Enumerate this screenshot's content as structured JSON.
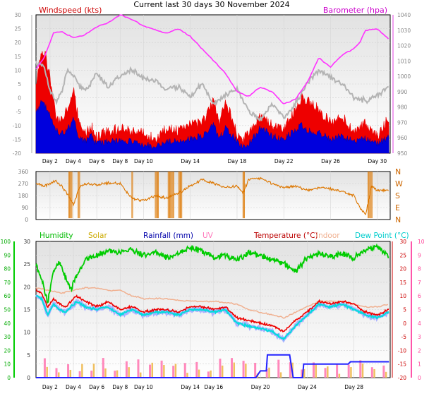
{
  "title": "Current last 30 days 30 November 2024",
  "chart_data": [
    {
      "type": "line",
      "panel": "top",
      "left_label": "Windspeed (kts)",
      "right_label": "Barometer (hpa)",
      "left_ylim": [
        -20,
        30
      ],
      "left_ticks": [
        "30",
        "25",
        "20",
        "15",
        "10",
        "5",
        "0",
        "-5",
        "-10",
        "-15",
        "-20"
      ],
      "right_ylim": [
        950,
        1040
      ],
      "right_ticks": [
        "1040",
        "1030",
        "1020",
        "1010",
        "1000",
        "990",
        "980",
        "970",
        "960",
        "950"
      ],
      "x_ticks": [
        "Day 2",
        "Day 4",
        "Day 6",
        "Day 8",
        "Day 10",
        "Day 14",
        "Day 18",
        "Day 22",
        "Day 26",
        "Day 30"
      ],
      "x_tick_days": [
        2,
        4,
        6,
        8,
        10,
        14,
        18,
        22,
        26,
        30
      ],
      "x_range_days": [
        0.8,
        31.1
      ],
      "series": [
        {
          "name": "Barometer (hpa)",
          "color": "#ff33ff",
          "axis": "right",
          "x": [
            0.8,
            1.5,
            2.3,
            3.0,
            4.0,
            5.0,
            6.0,
            7.0,
            8.0,
            9.0,
            10.0,
            11.0,
            12.0,
            13.0,
            14.0,
            15.0,
            16.0,
            17.0,
            18.0,
            19.0,
            20.0,
            21.0,
            22.0,
            23.0,
            24.0,
            25.0,
            26.0,
            27.0,
            28.0,
            28.5,
            29.0,
            30.0,
            31.0
          ],
          "values": [
            1005,
            1012,
            1028,
            1029,
            1025,
            1027,
            1032,
            1035,
            1040,
            1037,
            1033,
            1030,
            1028,
            1031,
            1026,
            1018,
            1010,
            1002,
            990,
            987,
            993,
            990,
            982,
            985,
            996,
            1012,
            1006,
            1014,
            1018,
            1022,
            1030,
            1031,
            1024
          ]
        },
        {
          "name": "Gust",
          "color": "#ee0000",
          "axis": "left",
          "x": [
            0.8,
            1.2,
            1.6,
            2.0,
            2.5,
            3.0,
            3.5,
            4.0,
            4.5,
            5.0,
            5.5,
            6.0,
            7.0,
            8.0,
            9.0,
            10.0,
            11.0,
            12.0,
            13.0,
            14.0,
            15.0,
            16.0,
            16.5,
            17.0,
            18.0,
            18.5,
            19.0,
            20.0,
            21.0,
            22.0,
            23.0,
            23.5,
            24.0,
            25.0,
            26.0,
            27.0,
            28.0,
            29.0,
            30.0,
            31.0
          ],
          "values": [
            3,
            13,
            14,
            5,
            -9,
            -10,
            -6,
            2,
            -12,
            -15,
            -12,
            -16,
            -14,
            -13,
            -14,
            -15,
            -17,
            -13,
            -14,
            -12,
            -11,
            -3,
            -12,
            -3,
            -15,
            -17,
            -15,
            -9,
            -12,
            -13,
            -6,
            -2,
            -3,
            -6,
            -11,
            -9,
            -14,
            -11,
            -16,
            -9
          ]
        },
        {
          "name": "Windspeed",
          "color": "#0000dd",
          "axis": "left",
          "x": [
            0.8,
            1.2,
            1.6,
            2.0,
            2.5,
            3.0,
            3.5,
            4.0,
            4.5,
            5.0,
            5.5,
            6.0,
            7.0,
            8.0,
            9.0,
            10.0,
            11.0,
            12.0,
            13.0,
            14.0,
            15.0,
            16.0,
            16.5,
            17.0,
            18.0,
            18.5,
            19.0,
            20.0,
            21.0,
            22.0,
            23.0,
            23.5,
            24.0,
            25.0,
            26.0,
            27.0,
            28.0,
            29.0,
            30.0,
            31.0
          ],
          "values": [
            -7,
            -3,
            -4,
            -8,
            -13,
            -14,
            -13,
            -9,
            -16,
            -17,
            -15,
            -18,
            -17,
            -17,
            -17,
            -18,
            -19,
            -17,
            -17,
            -16,
            -15,
            -11,
            -16,
            -12,
            -17,
            -19,
            -18,
            -12,
            -15,
            -16,
            -13,
            -11,
            -13,
            -14,
            -16,
            -15,
            -17,
            -16,
            -18,
            -15
          ]
        },
        {
          "name": "Wind average",
          "color": "#b4b4b4",
          "axis": "left",
          "x": [
            0.8,
            1.5,
            2.0,
            2.5,
            3.0,
            3.5,
            4.0,
            4.5,
            5.0,
            5.5,
            6.0,
            7.0,
            8.0,
            9.0,
            10.0,
            11.0,
            12.0,
            13.0,
            14.0,
            15.0,
            16.0,
            17.0,
            18.0,
            19.0,
            20.0,
            21.0,
            22.0,
            22.5,
            23.0,
            24.0,
            25.0,
            26.0,
            27.0,
            28.0,
            29.0,
            30.0,
            31.0
          ],
          "values": [
            13,
            11,
            2,
            -1,
            2,
            10,
            8,
            4,
            3,
            5,
            9,
            4,
            8,
            10,
            7,
            6,
            3,
            4,
            0,
            5,
            -2,
            1,
            3,
            -5,
            -8,
            -2,
            -7,
            -5,
            -2,
            5,
            10,
            7,
            5,
            0,
            -1,
            1,
            4
          ]
        }
      ]
    },
    {
      "type": "line",
      "panel": "direction",
      "left_ylim": [
        0,
        360
      ],
      "left_ticks": [
        "360",
        "270",
        "180",
        "90",
        "0"
      ],
      "right_ticks": [
        "N",
        "W",
        "S",
        "E",
        "N"
      ],
      "series": [
        {
          "name": "Wind direction",
          "color": "#dd7700",
          "x": [
            0.8,
            1.5,
            2.5,
            3.0,
            3.5,
            4.0,
            4.5,
            5.0,
            6.0,
            7.0,
            8.0,
            9.0,
            10.0,
            11.0,
            12.0,
            13.0,
            14.0,
            15.0,
            16.0,
            17.0,
            18.0,
            18.5,
            19.0,
            20.0,
            21.0,
            22.0,
            23.0,
            24.0,
            25.0,
            26.0,
            27.0,
            28.0,
            28.5,
            29.0,
            29.5,
            30.0,
            31.0
          ],
          "values": [
            270,
            250,
            290,
            250,
            190,
            110,
            240,
            270,
            260,
            275,
            270,
            160,
            140,
            180,
            160,
            200,
            250,
            300,
            270,
            240,
            250,
            200,
            300,
            310,
            270,
            240,
            250,
            220,
            240,
            230,
            210,
            180,
            90,
            40,
            250,
            220,
            220
          ]
        }
      ]
    },
    {
      "type": "line",
      "panel": "bottom",
      "legend": [
        "Humidity",
        "Solar",
        "Rainfall (mm)",
        "UV",
        "Temperature (°C)",
        "Indoor",
        "Dew Point (°C)"
      ],
      "humidity_ylim": [
        0,
        100
      ],
      "humidity_ticks": [
        "100",
        "90",
        "80",
        "70",
        "60",
        "50",
        "40",
        "30",
        "20",
        "10",
        "0"
      ],
      "left_ylim": [
        0,
        30
      ],
      "left_ticks": [
        "30",
        "25",
        "20",
        "15",
        "10",
        "5",
        "0"
      ],
      "right_ylim": [
        -20,
        30
      ],
      "right_ticks": [
        "30",
        "25",
        "20",
        "15",
        "10",
        "5",
        "0",
        "-5",
        "-10",
        "-15",
        "-20"
      ],
      "uv_ticks": [
        "10",
        "9",
        "8",
        "7",
        "6",
        "5",
        "4",
        "3",
        "2",
        "1",
        "0"
      ],
      "x_ticks": [
        "Day 2",
        "Day 4",
        "Day 6",
        "Day 8",
        "Day 10",
        "Day 14",
        "Day 16",
        "Day 20",
        "Day 24",
        "Day 28"
      ],
      "x_tick_days": [
        2,
        4,
        6,
        8,
        10,
        14,
        16,
        20,
        24,
        28
      ],
      "series": [
        {
          "name": "Humidity",
          "color": "#00cc00",
          "axis": "humidity",
          "x": [
            0.8,
            1.3,
            1.8,
            2.3,
            2.8,
            3.3,
            3.8,
            4.3,
            5.0,
            6.0,
            7.0,
            8.0,
            9.0,
            10.0,
            11.0,
            12.0,
            13.0,
            14.0,
            15.0,
            16.0,
            17.0,
            18.0,
            19.0,
            20.0,
            21.0,
            22.0,
            23.0,
            24.0,
            25.0,
            26.0,
            27.0,
            28.0,
            29.0,
            30.0,
            31.0
          ],
          "values": [
            82,
            72,
            55,
            78,
            85,
            74,
            65,
            75,
            86,
            90,
            93,
            92,
            94,
            90,
            92,
            88,
            91,
            95,
            93,
            88,
            90,
            86,
            92,
            90,
            87,
            84,
            78,
            88,
            91,
            89,
            91,
            88,
            94,
            96,
            88
          ]
        },
        {
          "name": "Temperature (°C)",
          "color": "#ee0000",
          "axis": "right",
          "x": [
            0.8,
            1.3,
            1.8,
            2.3,
            2.8,
            3.3,
            3.8,
            4.3,
            5.0,
            6.0,
            7.0,
            8.0,
            9.0,
            10.0,
            11.0,
            12.0,
            13.0,
            14.0,
            15.0,
            16.0,
            17.0,
            18.0,
            19.0,
            20.0,
            21.0,
            22.0,
            23.0,
            24.0,
            25.0,
            26.0,
            27.0,
            28.0,
            29.0,
            30.0,
            31.0
          ],
          "values": [
            12,
            11,
            6,
            9,
            7,
            6,
            8,
            10,
            8,
            6,
            8,
            5,
            6,
            4,
            5,
            5,
            4,
            6,
            6,
            5,
            6,
            2,
            1,
            0,
            -1,
            -3,
            1,
            4,
            8,
            7,
            8,
            7,
            4,
            3,
            5
          ]
        },
        {
          "name": "Dew Point (°C)",
          "color": "#00dddd",
          "axis": "right",
          "x": [
            0.8,
            1.3,
            1.8,
            2.3,
            2.8,
            3.3,
            3.8,
            4.3,
            5.0,
            6.0,
            7.0,
            8.0,
            9.0,
            10.0,
            11.0,
            12.0,
            13.0,
            14.0,
            15.0,
            16.0,
            17.0,
            18.0,
            19.0,
            20.0,
            21.0,
            22.0,
            23.0,
            24.0,
            25.0,
            26.0,
            27.0,
            28.0,
            29.0,
            30.0,
            31.0
          ],
          "values": [
            10,
            9,
            3,
            7,
            5,
            4,
            6,
            8,
            6,
            5,
            6,
            3,
            5,
            3,
            4,
            4,
            3,
            5,
            5,
            4,
            5,
            0,
            -1,
            -2,
            -3,
            -6,
            -1,
            3,
            7,
            6,
            7,
            5,
            3,
            2,
            4
          ]
        },
        {
          "name": "Indoor",
          "color": "#f0b090",
          "axis": "right",
          "x": [
            0.8,
            2.0,
            3.0,
            4.0,
            5.0,
            6.0,
            7.0,
            8.0,
            9.0,
            10.0,
            12.0,
            14.0,
            16.0,
            18.0,
            19.0,
            20.0,
            21.0,
            22.0,
            23.0,
            24.0,
            25.0,
            26.0,
            27.0,
            28.0,
            29.0,
            30.0,
            31.0
          ],
          "values": [
            13,
            12,
            11,
            12,
            13,
            13,
            12,
            12,
            10,
            9,
            9,
            8,
            8,
            7,
            5,
            4,
            3,
            2,
            4,
            6,
            8,
            8,
            8,
            7,
            6,
            6,
            7
          ]
        },
        {
          "name": "Rainfall (mm)",
          "color": "#2222ff",
          "axis": "left",
          "x": [
            0.8,
            18.0,
            18.8,
            19.0,
            19.6,
            20.0,
            20.5,
            20.6,
            21.0,
            22.0,
            22.5,
            22.8,
            23.0,
            23.6,
            23.7,
            24.0,
            26.0,
            27.0,
            27.5,
            27.7,
            28.0,
            31.0
          ],
          "values": [
            0,
            0,
            0,
            0,
            0,
            1.5,
            1.5,
            5,
            5,
            5,
            5,
            0,
            0,
            0,
            3,
            3,
            3,
            3,
            3,
            3.5,
            3.5,
            3.5
          ]
        }
      ]
    }
  ]
}
